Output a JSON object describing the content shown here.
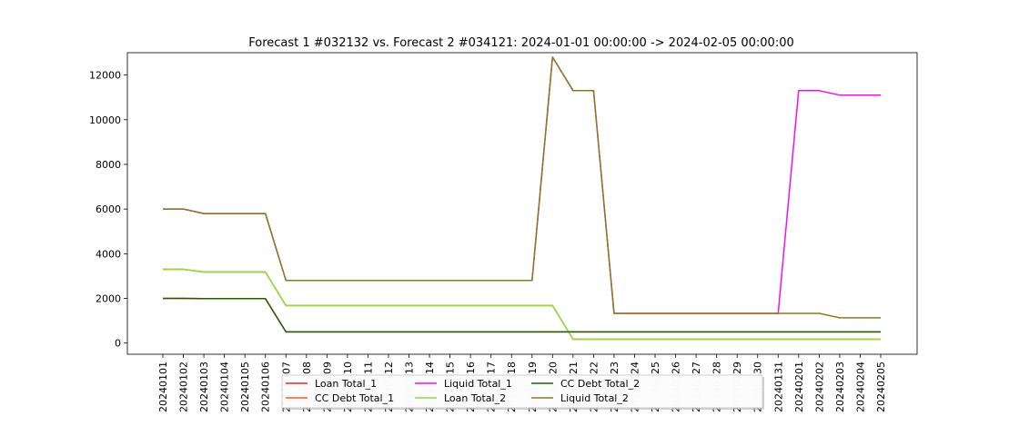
{
  "chart_data": {
    "type": "line",
    "title": "Forecast 1 #032132 vs. Forecast 2 #034121: 2024-01-01 00:00:00 -> 2024-02-05 00:00:00",
    "xlabel": "",
    "ylabel": "",
    "ylim": [
      -500,
      13000
    ],
    "yticks": [
      0,
      2000,
      4000,
      6000,
      8000,
      10000,
      12000
    ],
    "x": [
      "20240101",
      "20240102",
      "20240103",
      "20240104",
      "20240105",
      "20240106",
      "20240107",
      "20240108",
      "20240109",
      "20240110",
      "20240111",
      "20240112",
      "20240113",
      "20240114",
      "20240115",
      "20240116",
      "20240117",
      "20240118",
      "20240119",
      "20240120",
      "20240121",
      "20240122",
      "20240123",
      "20240124",
      "20240125",
      "20240126",
      "20240127",
      "20240128",
      "20240129",
      "20240130",
      "20240131",
      "20240201",
      "20240202",
      "20240203",
      "20240204",
      "20240205"
    ],
    "legend_position": "lower center",
    "series": [
      {
        "name": "Loan Total_1",
        "color": "#e8242f",
        "values": [
          3300,
          3300,
          3180,
          3180,
          3180,
          3180,
          1680,
          1680,
          1680,
          1680,
          1680,
          1680,
          1680,
          1680,
          1680,
          1680,
          1680,
          1680,
          1680,
          1680,
          170,
          170,
          170,
          170,
          170,
          170,
          170,
          170,
          170,
          170,
          170,
          170,
          170,
          170,
          170,
          170
        ]
      },
      {
        "name": "CC Debt Total_1",
        "color": "#f05a28",
        "values": [
          2000,
          2000,
          1990,
          1990,
          1990,
          1990,
          500,
          500,
          500,
          500,
          500,
          500,
          500,
          500,
          500,
          500,
          500,
          500,
          500,
          500,
          500,
          500,
          500,
          500,
          500,
          500,
          500,
          500,
          500,
          500,
          500,
          500,
          500,
          500,
          500,
          500
        ]
      },
      {
        "name": "Liquid Total_1",
        "color": "#ee11ee",
        "values": [
          6000,
          6000,
          5800,
          5800,
          5800,
          5800,
          2800,
          2800,
          2800,
          2800,
          2800,
          2800,
          2800,
          2800,
          2800,
          2800,
          2800,
          2800,
          2800,
          12800,
          11300,
          11300,
          1330,
          1330,
          1330,
          1330,
          1330,
          1330,
          1330,
          1330,
          1330,
          11300,
          11300,
          11100,
          11100,
          11100
        ]
      },
      {
        "name": "Loan Total_2",
        "color": "#8ae234",
        "values": [
          3300,
          3300,
          3180,
          3180,
          3180,
          3180,
          1680,
          1680,
          1680,
          1680,
          1680,
          1680,
          1680,
          1680,
          1680,
          1680,
          1680,
          1680,
          1680,
          1680,
          170,
          170,
          170,
          170,
          170,
          170,
          170,
          170,
          170,
          170,
          170,
          170,
          170,
          170,
          170,
          170
        ]
      },
      {
        "name": "CC Debt Total_2",
        "color": "#1f5c0a",
        "values": [
          2000,
          2000,
          1990,
          1990,
          1990,
          1990,
          500,
          500,
          500,
          500,
          500,
          500,
          500,
          500,
          500,
          500,
          500,
          500,
          500,
          500,
          500,
          500,
          500,
          500,
          500,
          500,
          500,
          500,
          500,
          500,
          500,
          500,
          500,
          500,
          500,
          500
        ]
      },
      {
        "name": "Liquid Total_2",
        "color": "#8a7a1e",
        "values": [
          6000,
          6000,
          5800,
          5800,
          5800,
          5800,
          2800,
          2800,
          2800,
          2800,
          2800,
          2800,
          2800,
          2800,
          2800,
          2800,
          2800,
          2800,
          2800,
          12800,
          11300,
          11300,
          1330,
          1330,
          1330,
          1330,
          1330,
          1330,
          1330,
          1330,
          1330,
          1330,
          1330,
          1130,
          1130,
          1130
        ]
      }
    ]
  }
}
